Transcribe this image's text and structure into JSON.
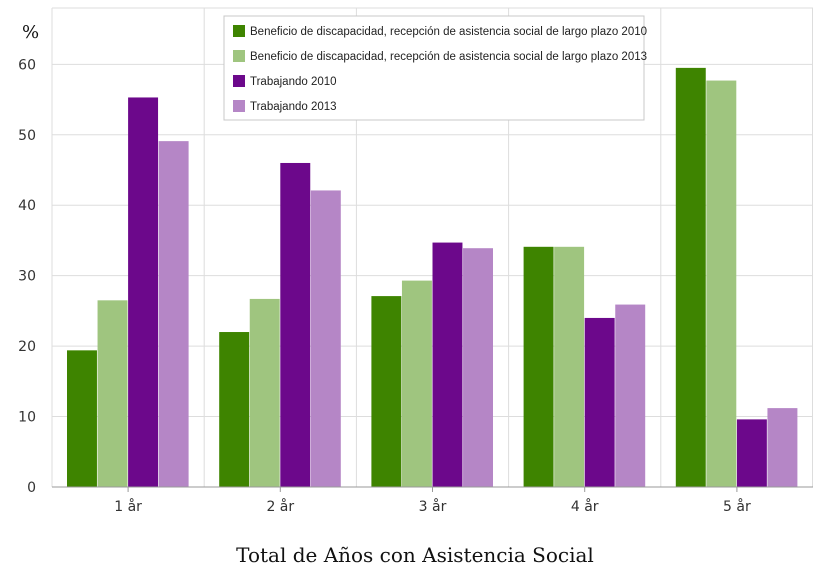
{
  "chart_data": {
    "type": "bar",
    "ylabel": "%",
    "xlabel": "Total de Años con Asistencia Social",
    "categories": [
      "1 år",
      "2 år",
      "3 år",
      "4 år",
      "5 år"
    ],
    "ylim": [
      0,
      68
    ],
    "yticks": [
      0,
      10,
      20,
      30,
      40,
      50,
      60
    ],
    "grid": true,
    "legend_position": "top-center",
    "series": [
      {
        "name": "Beneficio de discapacidad, recepción de asistencia social de largo plazo 2010",
        "color": "#3e8400",
        "values": [
          19.4,
          22.0,
          27.1,
          34.1,
          59.5
        ]
      },
      {
        "name": "Beneficio de discapacidad, recepción de asistencia social de largo plazo 2013",
        "color": "#9fc57f",
        "values": [
          26.5,
          26.7,
          29.3,
          34.1,
          57.7
        ]
      },
      {
        "name": "Trabajando 2010",
        "color": "#6c088b",
        "values": [
          55.3,
          46.0,
          34.7,
          24.0,
          9.6
        ]
      },
      {
        "name": "Trabajando 2013",
        "color": "#b586c6",
        "values": [
          49.1,
          42.1,
          33.9,
          25.9,
          11.2
        ]
      }
    ]
  }
}
